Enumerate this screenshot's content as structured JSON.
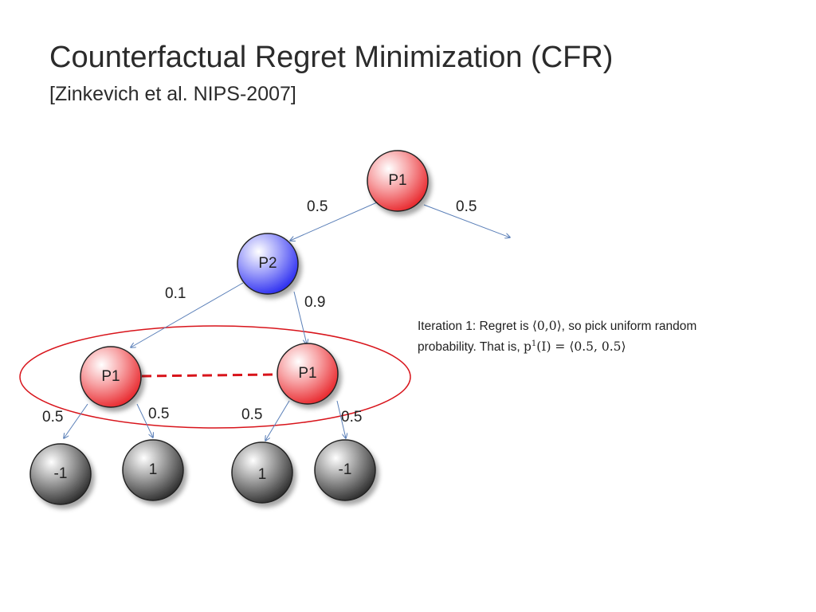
{
  "slide": {
    "title": "Counterfactual Regret Minimization (CFR)",
    "subtitle": "[Zinkevich et al. NIPS-2007]"
  },
  "tree": {
    "root_label": "P1",
    "p2_label": "P2",
    "left_p1_label": "P1",
    "right_p1_label": "P1",
    "leaves": [
      "-1",
      "1",
      "1",
      "-1"
    ],
    "edge_labels": {
      "root_left": "0.5",
      "root_right": "0.5",
      "p2_left": "0.1",
      "p2_right": "0.9",
      "lp1_left": "0.5",
      "lp1_right": "0.5",
      "rp1_left": "0.5",
      "rp1_right": "0.5"
    }
  },
  "note": {
    "line1_prefix": "Iteration 1: Regret is ",
    "regret_value": "⟨0,0⟩",
    "line1_suffix": ", so pick uniform random",
    "line2_prefix": "probability. That is, ",
    "p_symbol": "p",
    "p_superscript": "1",
    "p_argument": "(I) = ",
    "prob_value": "⟨0.5, 0.5⟩"
  },
  "colors": {
    "p1_node": "#e8262b",
    "p2_node": "#2a2cf0",
    "leaf_node": "#2a2a2a",
    "edge": "#5a7fb8",
    "infoset": "#d8141b"
  }
}
